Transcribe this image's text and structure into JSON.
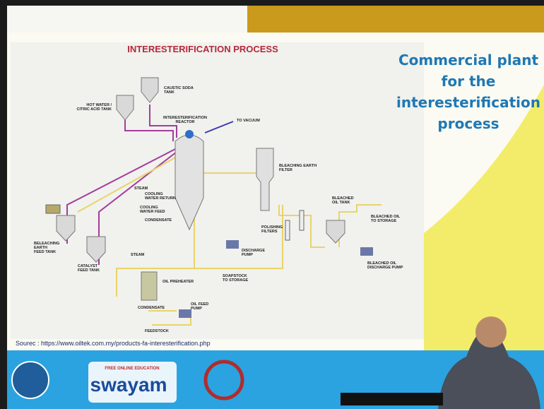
{
  "slide": {
    "heading": [
      "Commercial plant",
      "for the",
      "interesterification",
      "process"
    ],
    "source": "Sourec : https://www.oiltek.com.my/products-fa-interesterification.php"
  },
  "diagram": {
    "title": "INTERESTERIFICATION PROCESS",
    "labels": [
      [
        "HOT WATER /",
        "CITRIC ACID TANK"
      ],
      [
        "CAUSTIC SODA",
        "TANK"
      ],
      [
        "INTERESTERIFICATION",
        "REACTOR"
      ],
      [
        "TO VACUUM"
      ],
      [
        "BLEACHING EARTH",
        "FILTER"
      ],
      [
        "STEAM"
      ],
      [
        "COOLING",
        "WATER RETURN"
      ],
      [
        "COOLING",
        "WATER FEED"
      ],
      [
        "CONDENSATE"
      ],
      [
        "BELEACHING",
        "EARTH",
        "FEED TANK"
      ],
      [
        "CATALYST",
        "FEED TANK"
      ],
      [
        "STEAM"
      ],
      [
        "DISCHARGE",
        "PUMP"
      ],
      [
        "POLISHING",
        "FILTERS"
      ],
      [
        "BLEACHED",
        "OIL TANK"
      ],
      [
        "BLEACHED OIL",
        "TO STORAGE"
      ],
      [
        "BLEACHED OIL",
        "DISCHARGE PUMP"
      ],
      [
        "SOAPSTOCK",
        "TO STORAGE"
      ],
      [
        "OIL PREHEATER"
      ],
      [
        "CONDENSATE"
      ],
      [
        "OIL FEED",
        "PUMP"
      ],
      [
        "FEEDSTOCK"
      ]
    ]
  },
  "footer": {
    "badge": "FREE ONLINE EDUCATION",
    "logo": "swayam"
  }
}
